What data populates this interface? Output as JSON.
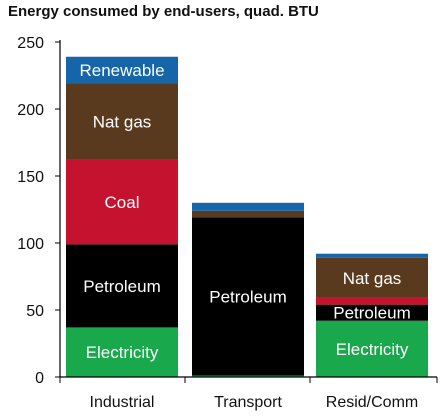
{
  "chart_data": {
    "type": "bar",
    "stacked": true,
    "title": "Energy consumed by end-users, quad. BTU",
    "xlabel": "",
    "ylabel": "",
    "ylim": [
      0,
      250
    ],
    "yticks": [
      0,
      50,
      100,
      150,
      200,
      250
    ],
    "grid": false,
    "categories": [
      "Industrial",
      "Transport",
      "Resid/Comm"
    ],
    "series": [
      {
        "name": "Electricity",
        "color": "#1aa84c",
        "values": [
          37,
          1,
          42
        ]
      },
      {
        "name": "Petroleum",
        "color": "#000000",
        "values": [
          62,
          118,
          12
        ]
      },
      {
        "name": "Coal",
        "color": "#c4122f",
        "values": [
          63,
          0,
          5
        ]
      },
      {
        "name": "Nat gas",
        "color": "#5a3a1f",
        "values": [
          57,
          5,
          30
        ]
      },
      {
        "name": "Renewable",
        "color": "#1565a8",
        "values": [
          20,
          6,
          3
        ]
      }
    ],
    "segment_labels": [
      {
        "category": 0,
        "series": 0,
        "text": "Electricity",
        "color": "#ffffff"
      },
      {
        "category": 0,
        "series": 1,
        "text": "Petroleum",
        "color": "#ffffff"
      },
      {
        "category": 0,
        "series": 2,
        "text": "Coal",
        "color": "#ffffff"
      },
      {
        "category": 0,
        "series": 3,
        "text": "Nat gas",
        "color": "#ffffff"
      },
      {
        "category": 0,
        "series": 4,
        "text": "Renewable",
        "color": "#ffffff"
      },
      {
        "category": 1,
        "series": 1,
        "text": "Petroleum",
        "color": "#ffffff"
      },
      {
        "category": 2,
        "series": 0,
        "text": "Electricity",
        "color": "#ffffff"
      },
      {
        "category": 2,
        "series": 1,
        "text": "Petroleum",
        "color": "#ffffff"
      },
      {
        "category": 2,
        "series": 3,
        "text": "Nat gas",
        "color": "#ffffff"
      }
    ]
  }
}
